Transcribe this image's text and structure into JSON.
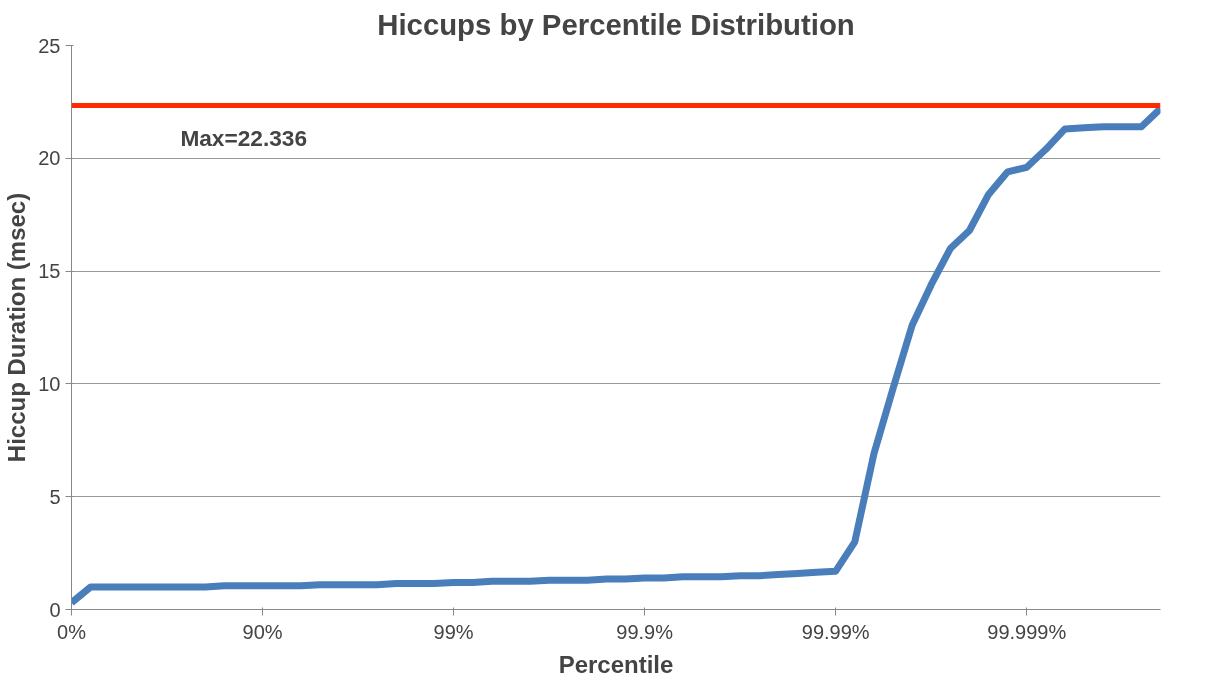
{
  "chart_data": {
    "type": "line",
    "title": "Hiccups by Percentile Distribution",
    "xlabel": "Percentile",
    "ylabel": "Hiccup Duration (msec)",
    "categories": [
      "0%",
      null,
      null,
      null,
      null,
      null,
      null,
      null,
      null,
      null,
      "90%",
      null,
      null,
      null,
      null,
      null,
      null,
      null,
      null,
      null,
      "99%",
      null,
      null,
      null,
      null,
      null,
      null,
      null,
      null,
      null,
      "99.9%",
      null,
      null,
      null,
      null,
      null,
      null,
      null,
      null,
      null,
      "99.99%",
      null,
      null,
      null,
      null,
      null,
      null,
      null,
      null,
      null,
      "99.999%",
      null,
      null,
      null,
      null,
      null,
      null,
      null
    ],
    "series": [
      {
        "color": "#4a7ebb",
        "values": [
          0.3,
          1.0,
          1.0,
          1.0,
          1.0,
          1.0,
          1.0,
          1.0,
          1.05,
          1.05,
          1.05,
          1.05,
          1.05,
          1.1,
          1.1,
          1.1,
          1.1,
          1.15,
          1.15,
          1.15,
          1.2,
          1.2,
          1.25,
          1.25,
          1.25,
          1.3,
          1.3,
          1.3,
          1.35,
          1.35,
          1.4,
          1.4,
          1.45,
          1.45,
          1.45,
          1.5,
          1.5,
          1.55,
          1.6,
          1.65,
          1.7,
          3.0,
          6.9,
          9.8,
          12.6,
          14.4,
          16.0,
          16.8,
          18.4,
          19.4,
          19.6,
          20.4,
          21.3,
          21.35,
          21.4,
          21.4,
          21.4,
          22.2
        ]
      }
    ],
    "ylim": [
      0,
      25
    ],
    "yticks": [
      0,
      5,
      10,
      15,
      20,
      25
    ],
    "grid": "y",
    "line_style": "solid",
    "ref_lines": [
      {
        "axis": "y",
        "value": 22.336,
        "label": "Max=22.336",
        "color": "#ff2a00"
      }
    ]
  }
}
